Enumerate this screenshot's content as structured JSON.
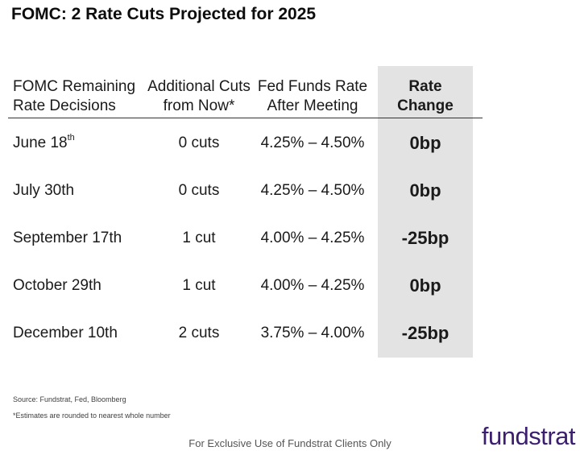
{
  "title": "FOMC: 2 Rate Cuts Projected for 2025",
  "table": {
    "headers": [
      {
        "line1": "FOMC Remaining",
        "line2": "Rate Decisions"
      },
      {
        "line1": "Additional Cuts",
        "line2": "from Now*"
      },
      {
        "line1": "Fed Funds Rate",
        "line2": "After Meeting"
      },
      {
        "line1": "Rate",
        "line2": "Change"
      }
    ],
    "rows": [
      {
        "date": "June 18",
        "sup": "th",
        "cuts": "0 cuts",
        "rate": "4.25% – 4.50%",
        "change": "0bp"
      },
      {
        "date": "July 30th",
        "sup": "",
        "cuts": "0 cuts",
        "rate": "4.25% – 4.50%",
        "change": "0bp"
      },
      {
        "date": "September 17th",
        "sup": "",
        "cuts": "1 cut",
        "rate": "4.00% – 4.25%",
        "change": "-25bp"
      },
      {
        "date": "October 29th",
        "sup": "",
        "cuts": "1 cut",
        "rate": "4.00% – 4.25%",
        "change": "0bp"
      },
      {
        "date": "December 10th",
        "sup": "",
        "cuts": "2 cuts",
        "rate": "3.75% – 4.00%",
        "change": "-25bp"
      }
    ]
  },
  "notes": {
    "source": "Source: Fundstrat, Fed, Bloomberg",
    "estimate": "*Estimates are rounded to nearest whole number"
  },
  "footer": "For Exclusive Use of Fundstrat Clients Only",
  "logo": "fundstrat",
  "colors": {
    "shade": "#e3e3e3",
    "logo": "#3b1e6e"
  }
}
